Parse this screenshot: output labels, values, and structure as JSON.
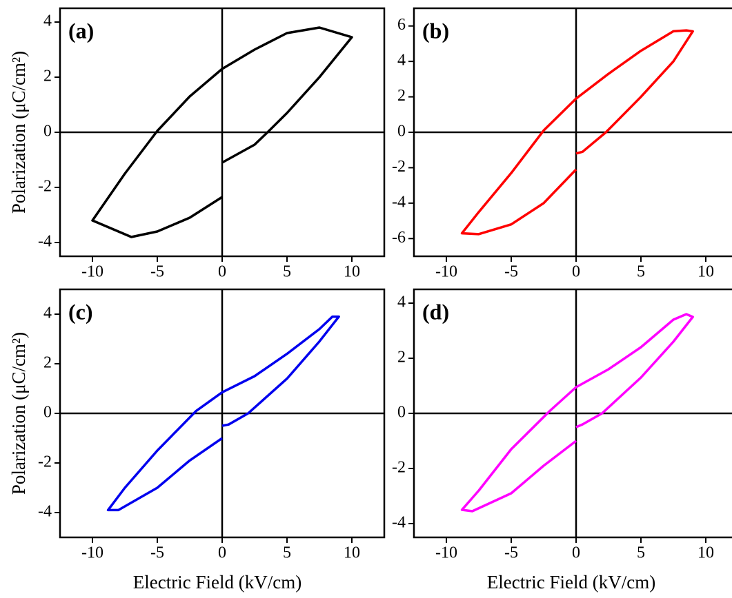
{
  "chart_data": [
    {
      "type": "line",
      "label": "(a)",
      "y_label": "Polarization (μC/cm²)",
      "x": [
        0,
        2.5,
        3.5,
        5,
        7.5,
        10,
        7.5,
        5,
        2.5,
        0,
        -2.5,
        -5,
        -7.5,
        -10,
        -7,
        -5,
        -2.5,
        0
      ],
      "series": [
        {
          "color": "#000000",
          "values": [
            -1.1,
            -0.45,
            0,
            0.7,
            2.0,
            3.45,
            3.8,
            3.6,
            3.0,
            2.3,
            1.3,
            0.05,
            -1.5,
            -3.2,
            -3.8,
            -3.6,
            -3.1,
            -2.35
          ]
        }
      ],
      "xlim": [
        -12.5,
        12.5
      ],
      "xticks": [
        -10,
        -5,
        0,
        5,
        10
      ],
      "ylim": [
        -4.5,
        4.5
      ],
      "yticks": [
        -4,
        -2,
        0,
        2,
        4
      ],
      "zero_lines": true
    },
    {
      "type": "line",
      "label": "(b)",
      "x": [
        0,
        0.5,
        2.3,
        5,
        7.5,
        9,
        8.5,
        7.5,
        5,
        2.5,
        0,
        -2.5,
        -5,
        -7.5,
        -8.8,
        -7.5,
        -5,
        -2.5,
        0
      ],
      "series": [
        {
          "color": "#ff0000",
          "values": [
            -1.2,
            -1.1,
            0,
            2.0,
            4.0,
            5.7,
            5.75,
            5.7,
            4.6,
            3.3,
            1.9,
            0.1,
            -2.3,
            -4.5,
            -5.7,
            -5.75,
            -5.2,
            -4.0,
            -2.1
          ]
        }
      ],
      "xlim": [
        -12.5,
        12.5
      ],
      "xticks": [
        -10,
        -5,
        0,
        5,
        10
      ],
      "ylim": [
        -7,
        7
      ],
      "yticks": [
        -6,
        -4,
        -2,
        0,
        2,
        4,
        6
      ],
      "zero_lines": true
    },
    {
      "type": "line",
      "label": "(c)",
      "y_label": "Polarization (μC/cm²)",
      "x_label": "Electric Field (kV/cm)",
      "x": [
        0,
        0.5,
        2,
        5,
        7.5,
        9,
        8.5,
        7.5,
        5,
        2.5,
        0,
        -2,
        -5,
        -7.5,
        -8.8,
        -8,
        -5,
        -2.5,
        0
      ],
      "series": [
        {
          "color": "#0000ee",
          "values": [
            -0.5,
            -0.45,
            0,
            1.4,
            2.9,
            3.9,
            3.9,
            3.4,
            2.4,
            1.5,
            0.85,
            0.1,
            -1.5,
            -3.0,
            -3.9,
            -3.9,
            -3.0,
            -1.9,
            -1.0
          ]
        }
      ],
      "xlim": [
        -12.5,
        12.5
      ],
      "xticks": [
        -10,
        -5,
        0,
        5,
        10
      ],
      "ylim": [
        -5,
        5
      ],
      "yticks": [
        -4,
        -2,
        0,
        2,
        4
      ],
      "zero_lines": true
    },
    {
      "type": "line",
      "label": "(d)",
      "x_label": "Electric Field (kV/cm)",
      "x": [
        0,
        0.5,
        2,
        5,
        7.5,
        9,
        8.5,
        7.5,
        5,
        2.5,
        0,
        -2,
        -5,
        -7.5,
        -8.8,
        -8,
        -5,
        -2.5,
        0
      ],
      "series": [
        {
          "color": "#ff00ff",
          "values": [
            -0.5,
            -0.4,
            0,
            1.3,
            2.6,
            3.5,
            3.6,
            3.4,
            2.4,
            1.6,
            0.95,
            0.1,
            -1.3,
            -2.8,
            -3.5,
            -3.55,
            -2.9,
            -1.9,
            -1.0
          ]
        }
      ],
      "xlim": [
        -12.5,
        12.5
      ],
      "xticks": [
        -10,
        -5,
        0,
        5,
        10
      ],
      "ylim": [
        -4.5,
        4.5
      ],
      "yticks": [
        -4,
        -2,
        0,
        2,
        4
      ],
      "zero_lines": true
    }
  ]
}
